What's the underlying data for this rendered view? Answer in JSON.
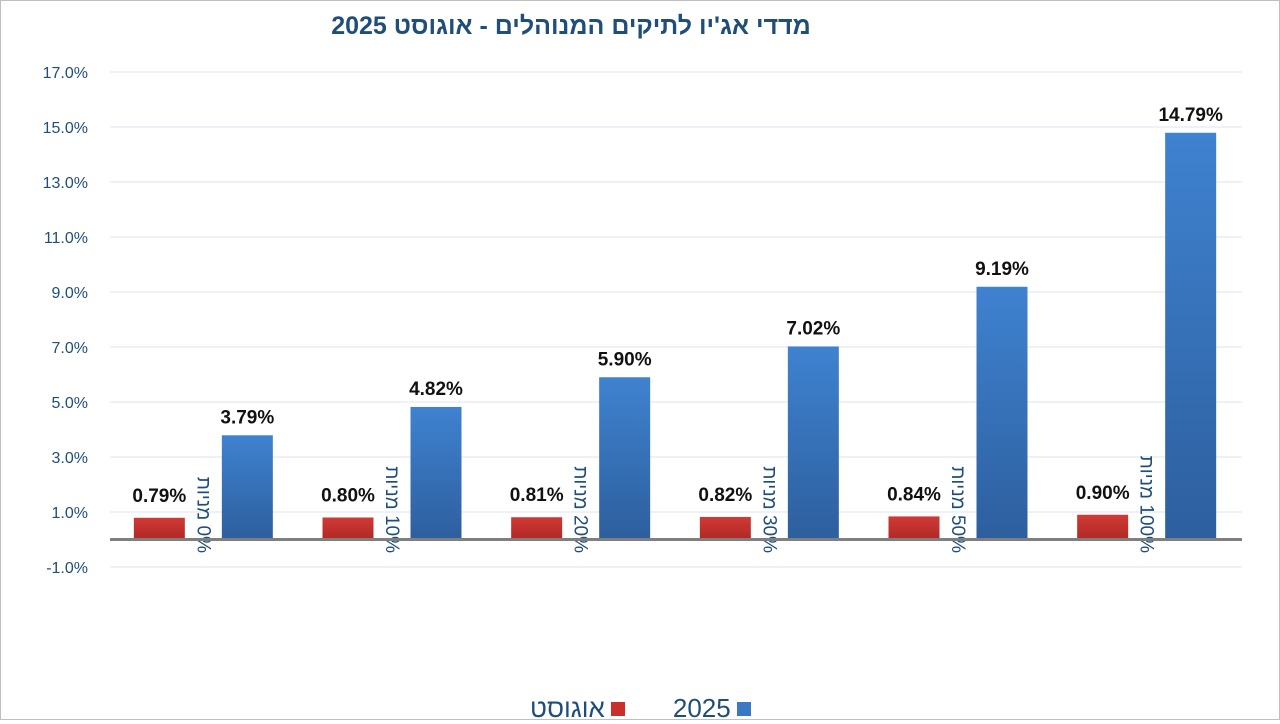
{
  "chart_data": {
    "type": "bar",
    "title": "מדדי אג'יו לתיקים המנוהלים  -  אוגוסט 2025",
    "categories": [
      "0% מניות",
      "10% מניות",
      "20% מניות",
      "30% מניות",
      "50% מניות",
      "100% מניות"
    ],
    "series": [
      {
        "name": "אוגוסט",
        "color": "#c9302c",
        "values": [
          0.79,
          0.8,
          0.81,
          0.82,
          0.84,
          0.9
        ],
        "labels": [
          "0.79%",
          "0.80%",
          "0.81%",
          "0.82%",
          "0.84%",
          "0.90%"
        ]
      },
      {
        "name": "2025",
        "color": "#3a78c4",
        "values": [
          3.79,
          4.82,
          5.9,
          7.02,
          9.19,
          14.79
        ],
        "labels": [
          "3.79%",
          "4.82%",
          "5.90%",
          "7.02%",
          "9.19%",
          "14.79%"
        ]
      }
    ],
    "yticks": [
      "17.0%",
      "15.0%",
      "13.0%",
      "11.0%",
      "9.0%",
      "7.0%",
      "5.0%",
      "3.0%",
      "1.0%",
      "-1.0%"
    ],
    "ylim": [
      -1,
      17
    ],
    "grid": true,
    "legend": "bottom",
    "xlabel": "",
    "ylabel": ""
  }
}
